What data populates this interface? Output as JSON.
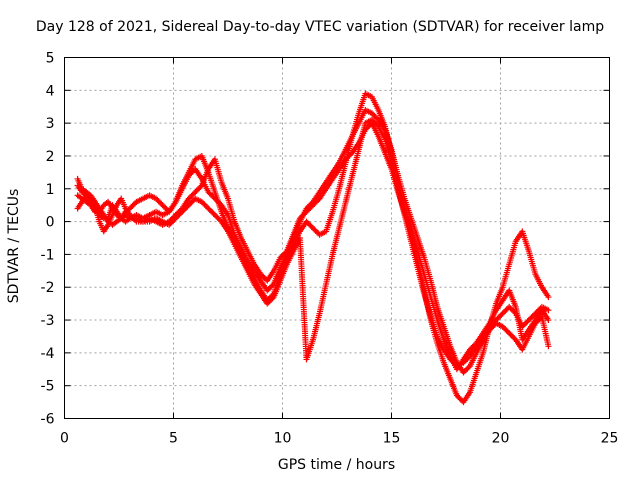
{
  "chart_data": {
    "type": "scatter",
    "title": "Day 128 of 2021, Sidereal Day-to-day VTEC variation (SDTVAR) for receiver lamp",
    "xlabel": "GPS time / hours",
    "ylabel": "SDTVAR / TECUs",
    "xlim": [
      0,
      25
    ],
    "ylim": [
      -6,
      5
    ],
    "xticks": [
      "0",
      "5",
      "10",
      "15",
      "20",
      "25"
    ],
    "yticks": [
      "-6",
      "-5",
      "-4",
      "-3",
      "-2",
      "-1",
      "0",
      "1",
      "2",
      "3",
      "4",
      "5"
    ],
    "grid": true,
    "marker": "+",
    "series": [
      {
        "color": "#ff0000",
        "x": [
          0.6,
          0.8,
          1.0,
          1.2,
          1.4,
          1.6,
          1.8,
          2.0,
          2.2,
          2.4,
          2.6,
          2.8,
          3.0,
          3.3,
          3.6,
          3.9,
          4.2,
          4.5,
          4.8,
          5.1,
          5.4,
          5.7,
          6.0,
          6.3,
          6.6,
          6.9,
          7.2,
          7.5,
          7.8,
          8.1,
          8.4,
          8.7,
          9.0,
          9.3,
          9.6,
          9.9,
          10.2,
          10.5,
          10.8,
          11.1,
          11.4,
          11.7,
          12.0,
          12.3,
          12.6,
          12.9,
          13.2,
          13.5,
          13.8,
          14.1,
          14.4,
          14.7,
          15.0,
          15.3,
          15.6,
          15.9,
          16.2,
          16.5,
          16.8,
          17.1,
          17.4,
          17.7,
          18.0,
          18.3,
          18.6,
          18.9,
          19.2,
          19.5,
          19.8,
          20.1,
          20.4,
          20.7,
          21.0,
          21.3,
          21.6,
          21.9,
          22.2
        ],
        "y": [
          1.1,
          0.9,
          0.8,
          0.6,
          0.4,
          0.2,
          0.1,
          0.1,
          0.5,
          0.3,
          0.1,
          0.0,
          0.1,
          0.2,
          0.1,
          0.2,
          0.3,
          0.2,
          0.3,
          0.6,
          1.0,
          1.4,
          1.6,
          1.3,
          0.9,
          0.7,
          0.5,
          0.2,
          -0.4,
          -0.8,
          -1.2,
          -1.5,
          -1.8,
          -2.1,
          -1.9,
          -1.4,
          -1.0,
          -0.5,
          0.0,
          0.4,
          0.6,
          0.9,
          1.2,
          1.5,
          1.8,
          2.2,
          2.6,
          3.0,
          3.4,
          3.3,
          3.1,
          2.8,
          2.2,
          1.4,
          0.7,
          0.1,
          -0.5,
          -1.1,
          -1.8,
          -2.6,
          -3.2,
          -3.8,
          -4.3,
          -4.6,
          -4.4,
          -4.0,
          -3.6,
          -3.3,
          -3.0,
          -2.8,
          -2.6,
          -2.8,
          -3.2,
          -3.0,
          -2.8,
          -2.6,
          -2.7
        ]
      },
      {
        "color": "#ff0000",
        "x": [
          0.6,
          0.8,
          1.0,
          1.2,
          1.4,
          1.6,
          1.8,
          2.0,
          2.2,
          2.4,
          2.6,
          2.8,
          3.0,
          3.3,
          3.6,
          3.9,
          4.2,
          4.5,
          4.8,
          5.1,
          5.4,
          5.7,
          6.0,
          6.3,
          6.6,
          6.9,
          7.2,
          7.5,
          7.8,
          8.1,
          8.4,
          8.7,
          9.0,
          9.3,
          9.6,
          9.9,
          10.2,
          10.5,
          10.8,
          11.1,
          11.4,
          11.7,
          12.0,
          12.3,
          12.6,
          12.9,
          13.2,
          13.5,
          13.8,
          14.1,
          14.4,
          14.7,
          15.0,
          15.3,
          15.6,
          15.9,
          16.2,
          16.5,
          16.8,
          17.1,
          17.4,
          17.7,
          18.0,
          18.3,
          18.6,
          18.9,
          19.2,
          19.5,
          19.8,
          20.1,
          20.4,
          20.7,
          21.0,
          21.3,
          21.6,
          21.9,
          22.2
        ],
        "y": [
          0.4,
          0.6,
          0.8,
          0.7,
          0.5,
          0.0,
          -0.3,
          -0.1,
          0.2,
          0.5,
          0.7,
          0.4,
          0.2,
          0.0,
          0.0,
          0.1,
          0.0,
          -0.1,
          0.0,
          0.2,
          0.4,
          0.7,
          0.9,
          1.1,
          1.6,
          1.9,
          1.2,
          0.7,
          0.0,
          -0.5,
          -0.9,
          -1.3,
          -1.6,
          -1.8,
          -1.5,
          -1.1,
          -0.9,
          -0.4,
          0.1,
          0.3,
          0.5,
          0.7,
          1.0,
          1.3,
          1.6,
          1.9,
          2.1,
          2.4,
          2.8,
          3.0,
          2.6,
          2.1,
          1.6,
          0.9,
          0.3,
          -0.3,
          -0.9,
          -1.6,
          -2.3,
          -3.0,
          -3.6,
          -4.1,
          -4.5,
          -4.2,
          -3.9,
          -3.7,
          -3.4,
          -3.1,
          -2.7,
          -2.4,
          -2.1,
          -2.6,
          -3.6,
          -3.3,
          -3.0,
          -2.7,
          -3.0
        ]
      },
      {
        "color": "#ff0000",
        "x": [
          0.6,
          0.8,
          1.0,
          1.2,
          1.4,
          1.6,
          1.8,
          2.0,
          2.2,
          2.4,
          2.6,
          2.8,
          3.0,
          3.3,
          3.6,
          3.9,
          4.2,
          4.5,
          4.8,
          5.1,
          5.4,
          5.7,
          6.0,
          6.3,
          6.6,
          6.9,
          7.2,
          7.5,
          7.8,
          8.1,
          8.4,
          8.7,
          9.0,
          9.3,
          9.6,
          9.9,
          10.2,
          10.5,
          10.8,
          11.1,
          11.4,
          11.7,
          12.0,
          12.3,
          12.6,
          12.9,
          13.2,
          13.5,
          13.8,
          14.1,
          14.4,
          14.7,
          15.0,
          15.3,
          15.6,
          15.9,
          16.2,
          16.5,
          16.8,
          17.1,
          17.4,
          17.7,
          18.0,
          18.3,
          18.6,
          18.9,
          19.2,
          19.5,
          19.8,
          20.1,
          20.4,
          20.7,
          21.0,
          21.3,
          21.6,
          21.9,
          22.2
        ],
        "y": [
          0.8,
          0.7,
          0.6,
          0.5,
          0.3,
          0.3,
          0.5,
          0.6,
          0.4,
          0.2,
          0.1,
          0.3,
          0.4,
          0.6,
          0.7,
          0.8,
          0.7,
          0.5,
          0.3,
          0.6,
          1.1,
          1.5,
          1.9,
          2.0,
          1.5,
          0.9,
          0.3,
          -0.2,
          -0.6,
          -1.0,
          -1.4,
          -1.7,
          -2.1,
          -2.4,
          -2.2,
          -1.6,
          -1.2,
          -0.7,
          -0.3,
          0.0,
          -0.2,
          -0.4,
          -0.3,
          0.3,
          1.0,
          1.8,
          2.6,
          3.3,
          3.9,
          3.8,
          3.4,
          2.9,
          2.1,
          1.2,
          0.4,
          -0.4,
          -1.2,
          -2.1,
          -3.0,
          -3.7,
          -4.3,
          -4.8,
          -5.3,
          -5.5,
          -5.2,
          -4.6,
          -4.0,
          -3.2,
          -2.5,
          -2.0,
          -1.3,
          -0.6,
          -0.3,
          -0.9,
          -1.6,
          -2.0,
          -2.3
        ]
      },
      {
        "color": "#ff0000",
        "x": [
          0.6,
          0.8,
          1.0,
          1.2,
          1.4,
          1.6,
          1.8,
          2.0,
          2.2,
          2.4,
          2.6,
          2.8,
          3.0,
          3.3,
          3.6,
          3.9,
          4.2,
          4.5,
          4.8,
          5.1,
          5.4,
          5.7,
          6.0,
          6.3,
          6.6,
          6.9,
          7.2,
          7.5,
          7.8,
          8.1,
          8.4,
          8.7,
          9.0,
          9.3,
          9.6,
          9.9,
          10.2,
          10.5,
          10.8,
          11.1,
          11.4,
          11.7,
          12.0,
          12.3,
          12.6,
          12.9,
          13.2,
          13.5,
          13.8,
          14.1,
          14.4,
          14.7,
          15.0,
          15.3,
          15.6,
          15.9,
          16.2,
          16.5,
          16.8,
          17.1,
          17.4,
          17.7,
          18.0,
          18.3,
          18.6,
          18.9,
          19.2,
          19.5,
          19.8,
          20.1,
          20.4,
          20.7,
          21.0,
          21.3,
          21.6,
          21.9,
          22.2
        ],
        "y": [
          1.3,
          1.0,
          0.9,
          0.8,
          0.6,
          0.4,
          0.2,
          0.0,
          -0.1,
          0.0,
          0.1,
          0.2,
          0.1,
          0.1,
          0.0,
          0.0,
          0.1,
          0.0,
          -0.1,
          0.1,
          0.3,
          0.5,
          0.7,
          0.6,
          0.4,
          0.2,
          0.0,
          -0.3,
          -0.7,
          -1.1,
          -1.5,
          -1.9,
          -2.2,
          -2.5,
          -2.3,
          -1.8,
          -1.3,
          -0.9,
          -0.5,
          -4.2,
          -3.6,
          -2.8,
          -1.9,
          -1.0,
          -0.2,
          0.6,
          1.4,
          2.2,
          3.0,
          3.1,
          2.9,
          2.5,
          1.8,
          1.0,
          0.2,
          -0.6,
          -1.4,
          -2.2,
          -2.9,
          -3.5,
          -3.9,
          -4.2,
          -4.4,
          -4.3,
          -4.1,
          -3.8,
          -3.5,
          -3.3,
          -3.1,
          -3.2,
          -3.4,
          -3.6,
          -3.9,
          -3.5,
          -3.1,
          -2.9,
          -3.8
        ]
      }
    ]
  }
}
